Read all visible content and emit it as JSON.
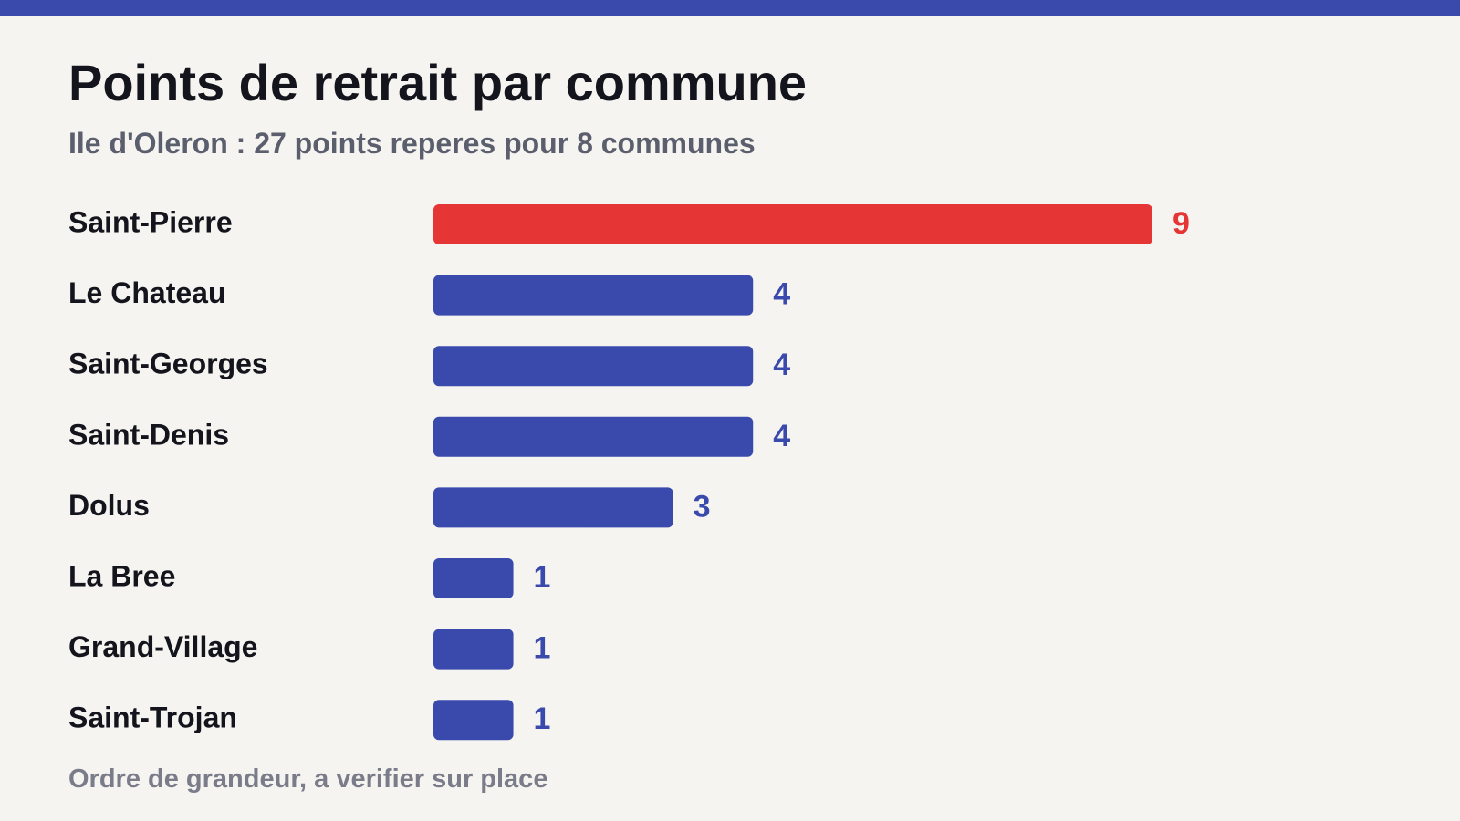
{
  "header": {
    "title": "Points de retrait par commune",
    "subtitle": "Ile d'Oleron : 27 points reperes pour 8 communes"
  },
  "footer": {
    "note": "Ordre de grandeur, a verifier sur place"
  },
  "colors": {
    "accent_bar": "#3a4aac",
    "highlight": "#e63535",
    "default_bar": "#3a4aac",
    "background": "#f5f4f1"
  },
  "chart_data": {
    "type": "bar",
    "orientation": "horizontal",
    "title": "Points de retrait par commune",
    "subtitle": "Ile d'Oleron : 27 points reperes pour 8 communes",
    "categories": [
      "Saint-Pierre",
      "Le Chateau",
      "Saint-Georges",
      "Saint-Denis",
      "Dolus",
      "La Bree",
      "Grand-Village",
      "Saint-Trojan"
    ],
    "values": [
      9,
      4,
      4,
      4,
      3,
      1,
      1,
      1
    ],
    "value_labels": [
      "9",
      "4",
      "4",
      "4",
      "3",
      "1",
      "1",
      "1"
    ],
    "highlight_index": 0,
    "xlim": [
      0,
      9
    ],
    "grid": false,
    "legend": "none"
  }
}
